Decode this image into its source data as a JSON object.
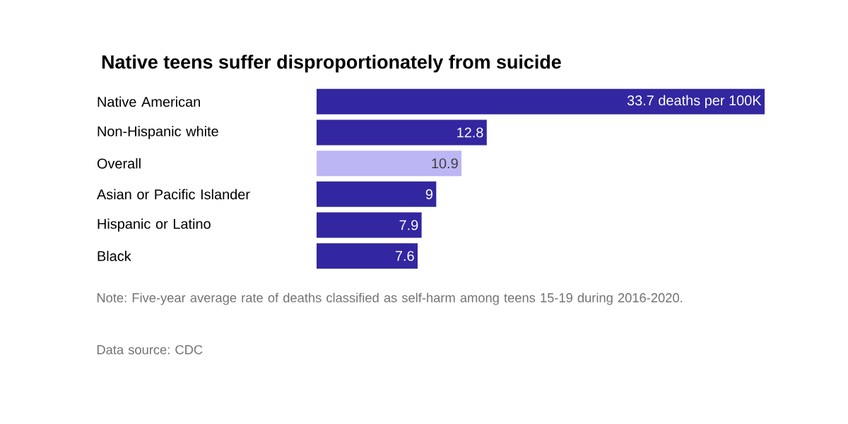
{
  "chart_data": {
    "type": "bar",
    "orientation": "horizontal",
    "title": "Native teens suffer disproportionately from suicide",
    "categories": [
      "Native American",
      "Non-Hispanic white",
      "Overall",
      "Asian or Pacific Islander",
      "Hispanic or Latino",
      "Black"
    ],
    "values": [
      33.7,
      12.8,
      10.9,
      9,
      7.9,
      7.6
    ],
    "value_labels": [
      "33.7 deaths per 100K",
      "12.8",
      "10.9",
      "9",
      "7.9",
      "7.6"
    ],
    "colors": [
      "#3227a0",
      "#3227a0",
      "#bcb6f5",
      "#3227a0",
      "#3227a0",
      "#3227a0"
    ],
    "annotations": [
      "Note: Five-year average rate of deaths classified as self-harm among teens 15-19 during 2016-2020.",
      "Data source: CDC"
    ]
  }
}
